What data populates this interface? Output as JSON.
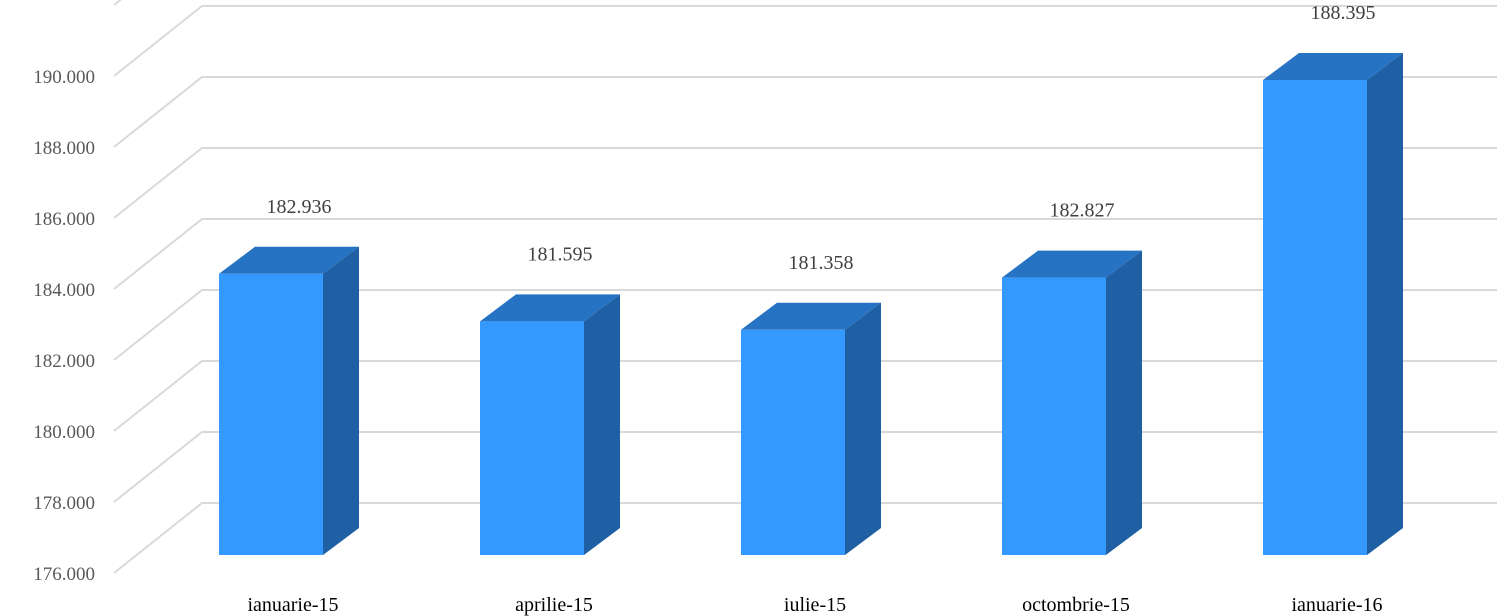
{
  "chart_data": {
    "type": "bar",
    "style": "3d-column",
    "categories": [
      "ianuarie-15",
      "aprilie-15",
      "iulie-15",
      "octombrie-15",
      "ianuarie-16"
    ],
    "values": [
      182.936,
      181.595,
      181.358,
      182.827,
      188.395
    ],
    "data_labels": [
      "182.936",
      "181.595",
      "181.358",
      "182.827",
      "188.395"
    ],
    "y_ticks": [
      "176.000",
      "178.000",
      "180.000",
      "182.000",
      "184.000",
      "186.000",
      "188.000",
      "190.000"
    ],
    "ylim": [
      176,
      190
    ],
    "title": "",
    "xlabel": "",
    "ylabel": "",
    "grid": true,
    "legend": "none",
    "colors": {
      "bar_front": "#3399ff",
      "bar_top": "#2673c4",
      "bar_side": "#1f5fa3",
      "grid": "#d9d9d9"
    }
  }
}
